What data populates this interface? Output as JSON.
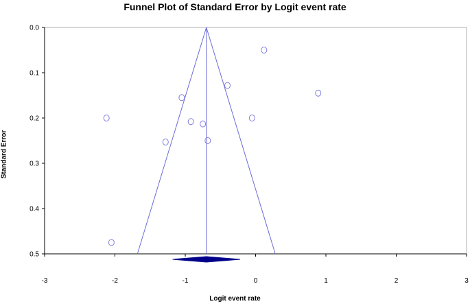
{
  "chart_data": {
    "type": "scatter",
    "title": "Funnel Plot of Standard Error by Logit event rate",
    "xlabel": "Logit event rate",
    "ylabel": "Standard Error",
    "xlim": [
      -3,
      3
    ],
    "ylim": [
      0.0,
      0.5
    ],
    "y_inverted": true,
    "x_ticks": [
      -3,
      -2,
      -1,
      0,
      1,
      2,
      3
    ],
    "y_ticks": [
      0.0,
      0.1,
      0.2,
      0.3,
      0.4,
      0.5
    ],
    "x_tick_labels": [
      "-3",
      "-2",
      "-1",
      "0",
      "1",
      "2",
      "3"
    ],
    "y_tick_labels": [
      "0.0",
      "0.1",
      "0.2",
      "0.3",
      "0.4",
      "0.5"
    ],
    "grid": false,
    "pooled_estimate": -0.7,
    "funnel_ci_multiplier": 1.96,
    "summary_diamond": {
      "center": -0.7,
      "lower": -1.18,
      "upper": -0.22
    },
    "points": [
      {
        "x": 0.12,
        "y": 0.05
      },
      {
        "x": -0.4,
        "y": 0.128
      },
      {
        "x": 0.89,
        "y": 0.145
      },
      {
        "x": -1.05,
        "y": 0.155
      },
      {
        "x": -2.12,
        "y": 0.2
      },
      {
        "x": -0.05,
        "y": 0.2
      },
      {
        "x": -0.92,
        "y": 0.208
      },
      {
        "x": -0.75,
        "y": 0.213
      },
      {
        "x": -1.28,
        "y": 0.253
      },
      {
        "x": -0.68,
        "y": 0.25
      },
      {
        "x": -2.05,
        "y": 0.475
      }
    ],
    "colors": {
      "points": "#8080e0",
      "funnel": "#6a6ad8",
      "diamond": "#00008b",
      "axis": "#000000"
    }
  }
}
